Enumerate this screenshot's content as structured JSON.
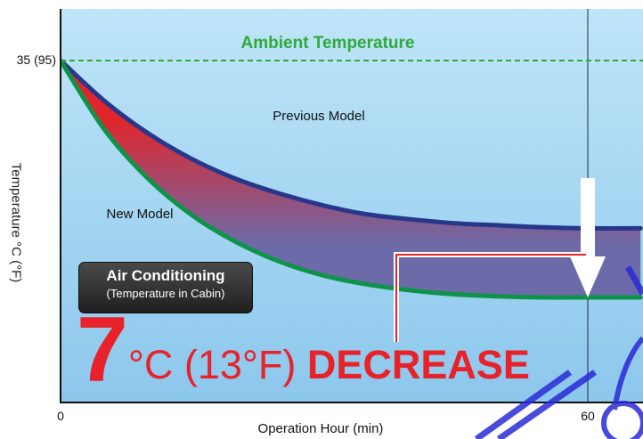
{
  "chart_data": {
    "type": "area",
    "title": "",
    "xlabel": "Operation Hour (min)",
    "ylabel": "Temperature °C (°F)",
    "x_ticks": [
      "0",
      "60"
    ],
    "y_ticks": [
      "35 (95)"
    ],
    "xlim": [
      0,
      66
    ],
    "ylim": [
      7,
      40
    ],
    "ambient": {
      "label": "Ambient Temperature",
      "value": 35
    },
    "series": [
      {
        "name": "Previous Model",
        "x": [
          0,
          5,
          10,
          15,
          20,
          25,
          30,
          35,
          40,
          45,
          50,
          55,
          60,
          66
        ],
        "values": [
          35,
          30.9,
          27.6,
          25.0,
          23.0,
          21.5,
          20.3,
          19.4,
          18.9,
          18.5,
          18.3,
          18.1,
          18.0,
          18.0
        ]
      },
      {
        "name": "New Model",
        "x": [
          0,
          5,
          10,
          15,
          20,
          25,
          30,
          35,
          40,
          45,
          50,
          55,
          60,
          66
        ],
        "values": [
          35,
          28.0,
          23.0,
          19.3,
          16.6,
          14.6,
          13.2,
          12.3,
          11.7,
          11.3,
          11.1,
          11.0,
          11.0,
          11.0
        ]
      }
    ],
    "marker_x": 60,
    "grid": false
  },
  "badge": {
    "title": "Air Conditioning",
    "subtitle": "(Temperature in Cabin)"
  },
  "callout": {
    "value": "7",
    "unit": "°C",
    "paren": "(13°F)",
    "word": "DECREASE"
  },
  "colors": {
    "background": "#a7d8f1",
    "ambient_line": "#2eaa3c",
    "previous_line": "#27378c",
    "new_line": "#0e9448",
    "fill_top": "#e0262c",
    "fill_bottom": "#6c6aa8",
    "callout": "#e8222a"
  }
}
